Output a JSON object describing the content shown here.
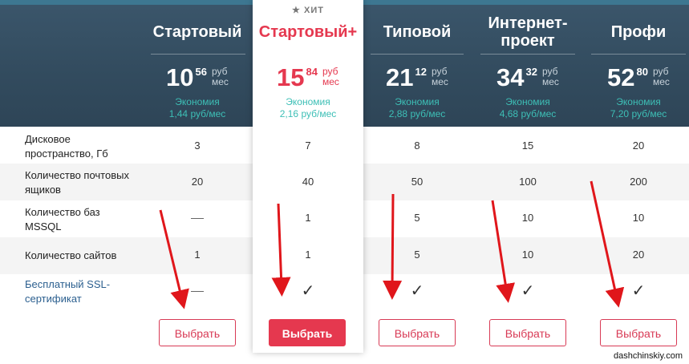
{
  "plans": [
    {
      "name": "Стартовый",
      "featured": false,
      "price_int": "10",
      "price_cents": "56",
      "unit_top": "руб",
      "unit_bottom": "мес",
      "economy_label": "Экономия",
      "economy_value": "1,44 руб/мес",
      "values": [
        "3",
        "20",
        "—",
        "1",
        "—"
      ],
      "button": "Выбрать"
    },
    {
      "name": "Стартовый+",
      "featured": true,
      "badge": "ХИТ",
      "price_int": "15",
      "price_cents": "84",
      "unit_top": "руб",
      "unit_bottom": "мес",
      "economy_label": "Экономия",
      "economy_value": "2,16 руб/мес",
      "values": [
        "7",
        "40",
        "1",
        "1",
        "✓"
      ],
      "button": "Выбрать"
    },
    {
      "name": "Типовой",
      "featured": false,
      "price_int": "21",
      "price_cents": "12",
      "unit_top": "руб",
      "unit_bottom": "мес",
      "economy_label": "Экономия",
      "economy_value": "2,88 руб/мес",
      "values": [
        "8",
        "50",
        "5",
        "5",
        "✓"
      ],
      "button": "Выбрать"
    },
    {
      "name": "Интернет-проект",
      "featured": false,
      "price_int": "34",
      "price_cents": "32",
      "unit_top": "руб",
      "unit_bottom": "мес",
      "economy_label": "Экономия",
      "economy_value": "4,68 руб/мес",
      "values": [
        "15",
        "100",
        "10",
        "10",
        "✓"
      ],
      "button": "Выбрать"
    },
    {
      "name": "Профи",
      "featured": false,
      "price_int": "52",
      "price_cents": "80",
      "unit_top": "руб",
      "unit_bottom": "мес",
      "economy_label": "Экономия",
      "economy_value": "7,20 руб/мес",
      "values": [
        "20",
        "200",
        "10",
        "20",
        "✓"
      ],
      "button": "Выбрать"
    }
  ],
  "name_lines": {
    "p3_line1": "Интернет-",
    "p3_line2": "проект"
  },
  "rows": [
    {
      "label_line1": "Дисковое",
      "label_line2": "пространство, Гб"
    },
    {
      "label_line1": "Количество почтовых",
      "label_line2": "ящиков"
    },
    {
      "label_line1": "Количество баз",
      "label_line2": "MSSQL"
    },
    {
      "label_line1": "Количество сайтов",
      "label_line2": ""
    },
    {
      "label_line1": "Бесплатный SSL-",
      "label_line2": "сертификат"
    }
  ],
  "watermark": "dashchinskiy.com",
  "colors": {
    "header": "#324b5e",
    "accent": "#e5384f",
    "economy": "#3dbfb6",
    "arrow": "#e0161b"
  }
}
